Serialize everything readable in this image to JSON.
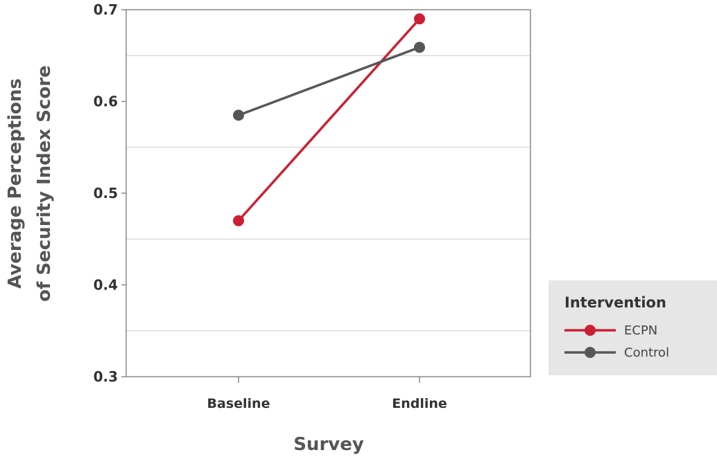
{
  "chart_data": {
    "type": "line",
    "title": "",
    "xlabel": "Survey",
    "ylabel_line1": "Average Perceptions",
    "ylabel_line2": "of Security Index Score",
    "categories": [
      "Baseline",
      "Endline"
    ],
    "ylim": [
      0.3,
      0.7
    ],
    "yticks": [
      0.3,
      0.4,
      0.5,
      0.6,
      0.7
    ],
    "ytick_labels": [
      "0.3",
      "0.4",
      "0.5",
      "0.6",
      "0.7"
    ],
    "grid": true,
    "legend_title": "Intervention",
    "legend_placement": "right",
    "series": [
      {
        "name": "ECPN",
        "color": "#cc1f33",
        "values": [
          0.47,
          0.69
        ]
      },
      {
        "name": "Control",
        "color": "#555759",
        "values": [
          0.585,
          0.659
        ]
      }
    ]
  }
}
